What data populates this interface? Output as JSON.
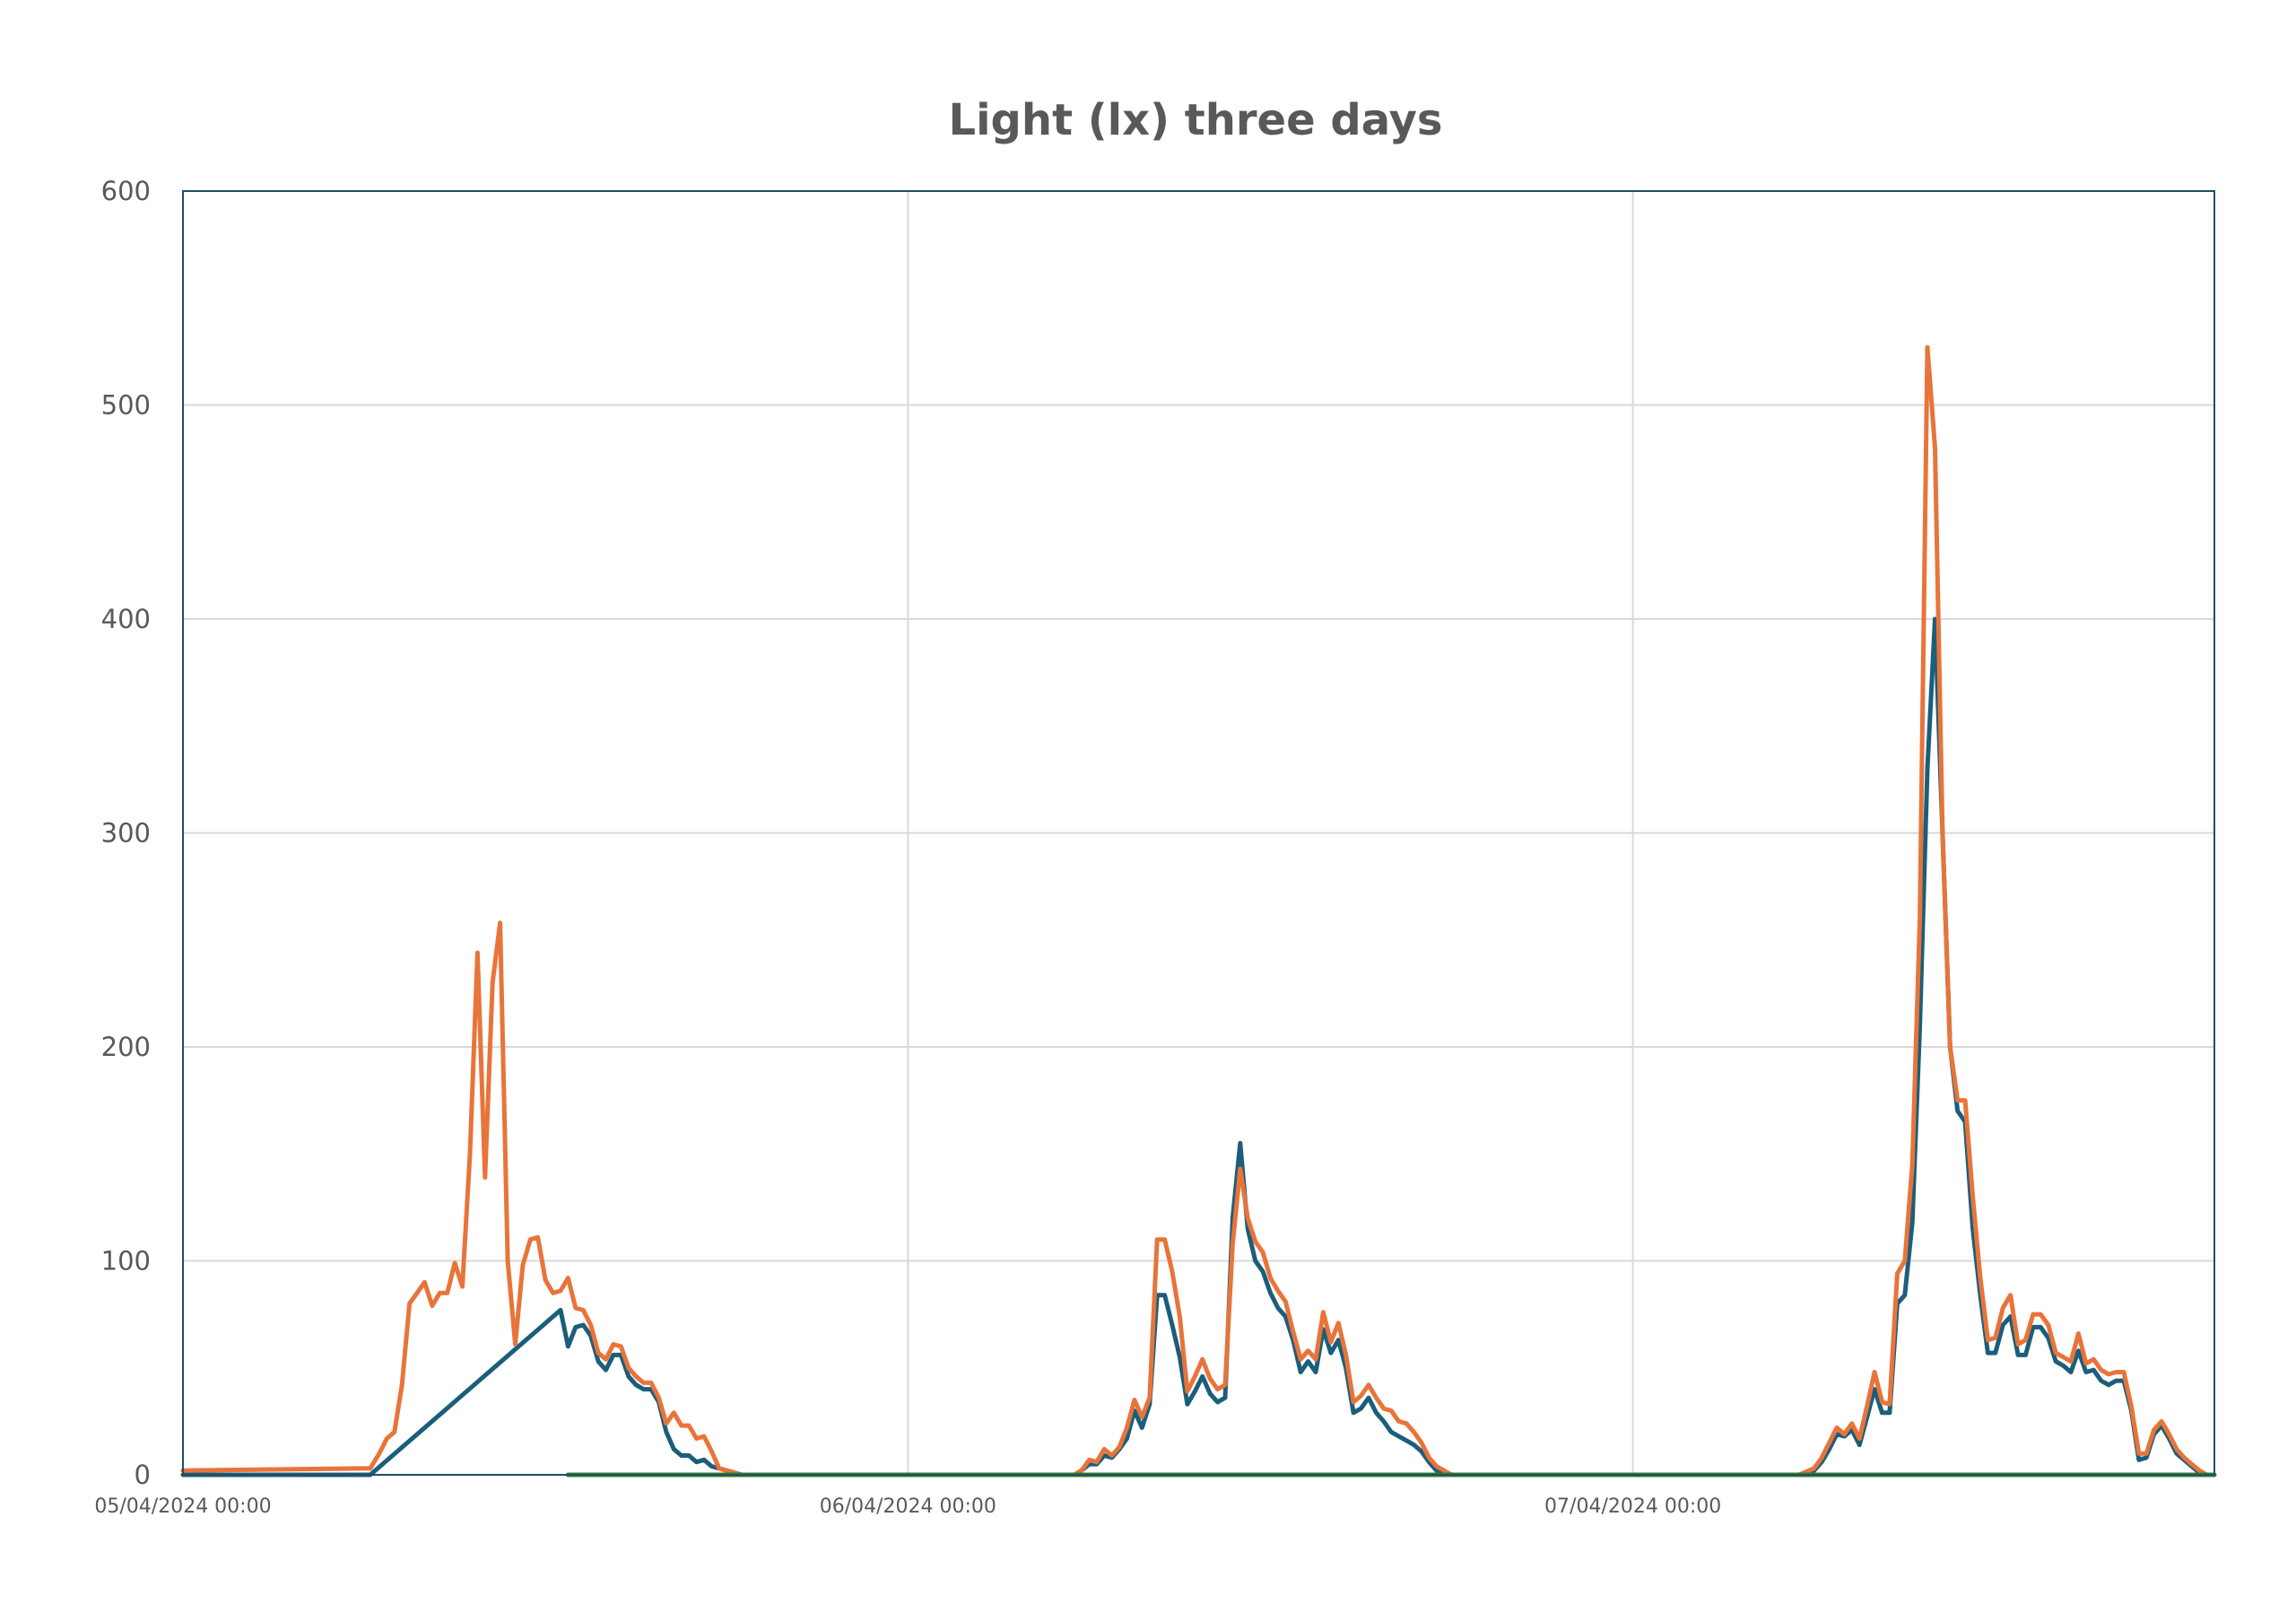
{
  "chart_data": {
    "type": "line",
    "title": "Light (lx) three days",
    "xlabel": "",
    "ylabel": "",
    "xlim": [
      0,
      67.25
    ],
    "ylim": [
      0,
      600
    ],
    "y_ticks": [
      0,
      100,
      200,
      300,
      400,
      500,
      600
    ],
    "x_ticks": [
      {
        "x": 0,
        "label": "05/04/2024 00:00"
      },
      {
        "x": 24,
        "label": "06/04/2024 00:00"
      },
      {
        "x": 48,
        "label": "07/04/2024 00:00"
      }
    ],
    "x_unit_note": "",
    "grid": true,
    "legend": "none",
    "colors": {
      "title": "#595959",
      "axis_text": "#595959",
      "grid": "#d9d9d9",
      "frame": "#1f4e63"
    },
    "series": [
      {
        "name": "",
        "color": "#1b5e7b",
        "points": [
          [
            0,
            0
          ],
          [
            6.2,
            0
          ],
          [
            12.5,
            77
          ],
          [
            12.75,
            60
          ],
          [
            13.0,
            69
          ],
          [
            13.25,
            70
          ],
          [
            13.5,
            65
          ],
          [
            13.75,
            53
          ],
          [
            14.0,
            49
          ],
          [
            14.25,
            56
          ],
          [
            14.5,
            56
          ],
          [
            14.75,
            46
          ],
          [
            15.0,
            42
          ],
          [
            15.25,
            40
          ],
          [
            15.5,
            40
          ],
          [
            15.75,
            34
          ],
          [
            16.0,
            20
          ],
          [
            16.25,
            12
          ],
          [
            16.5,
            9
          ],
          [
            16.75,
            9
          ],
          [
            17.0,
            6
          ],
          [
            17.25,
            7
          ],
          [
            17.5,
            4
          ],
          [
            18.0,
            2
          ],
          [
            18.5,
            0
          ],
          [
            29.5,
            0
          ],
          [
            29.75,
            2
          ],
          [
            30.0,
            5
          ],
          [
            30.25,
            5
          ],
          [
            30.5,
            9
          ],
          [
            30.75,
            8
          ],
          [
            31.0,
            12
          ],
          [
            31.25,
            17
          ],
          [
            31.5,
            30
          ],
          [
            31.75,
            22
          ],
          [
            32.0,
            33
          ],
          [
            32.25,
            84
          ],
          [
            32.5,
            84
          ],
          [
            32.75,
            70
          ],
          [
            33.0,
            55
          ],
          [
            33.25,
            33
          ],
          [
            33.5,
            39
          ],
          [
            33.75,
            46
          ],
          [
            34.0,
            38
          ],
          [
            34.25,
            34
          ],
          [
            34.5,
            36
          ],
          [
            34.75,
            120
          ],
          [
            35.0,
            155
          ],
          [
            35.25,
            115
          ],
          [
            35.5,
            100
          ],
          [
            35.75,
            95
          ],
          [
            36.0,
            85
          ],
          [
            36.25,
            78
          ],
          [
            36.5,
            74
          ],
          [
            36.75,
            63
          ],
          [
            37.0,
            48
          ],
          [
            37.25,
            53
          ],
          [
            37.5,
            48
          ],
          [
            37.75,
            68
          ],
          [
            38.0,
            57
          ],
          [
            38.25,
            63
          ],
          [
            38.5,
            50
          ],
          [
            38.75,
            29
          ],
          [
            39.0,
            31
          ],
          [
            39.25,
            36
          ],
          [
            39.5,
            29
          ],
          [
            39.75,
            25
          ],
          [
            40.0,
            20
          ],
          [
            40.25,
            18
          ],
          [
            40.5,
            16
          ],
          [
            40.75,
            14
          ],
          [
            41.0,
            11
          ],
          [
            41.25,
            6
          ],
          [
            41.5,
            2
          ],
          [
            42.0,
            0
          ],
          [
            53.5,
            0
          ],
          [
            54.0,
            2
          ],
          [
            54.25,
            6
          ],
          [
            54.5,
            12
          ],
          [
            54.75,
            19
          ],
          [
            55.0,
            18
          ],
          [
            55.25,
            21
          ],
          [
            55.5,
            14
          ],
          [
            55.75,
            27
          ],
          [
            56.0,
            40
          ],
          [
            56.25,
            29
          ],
          [
            56.5,
            29
          ],
          [
            56.75,
            80
          ],
          [
            57.0,
            84
          ],
          [
            57.25,
            118
          ],
          [
            57.5,
            210
          ],
          [
            57.75,
            330
          ],
          [
            58.0,
            400
          ],
          [
            58.25,
            300
          ],
          [
            58.5,
            200
          ],
          [
            58.75,
            170
          ],
          [
            59.0,
            165
          ],
          [
            59.25,
            115
          ],
          [
            59.5,
            84
          ],
          [
            59.75,
            57
          ],
          [
            60.0,
            57
          ],
          [
            60.25,
            70
          ],
          [
            60.5,
            74
          ],
          [
            60.75,
            56
          ],
          [
            61.0,
            56
          ],
          [
            61.25,
            69
          ],
          [
            61.5,
            69
          ],
          [
            61.75,
            64
          ],
          [
            62.0,
            53
          ],
          [
            62.25,
            51
          ],
          [
            62.5,
            48
          ],
          [
            62.75,
            58
          ],
          [
            63.0,
            48
          ],
          [
            63.25,
            49
          ],
          [
            63.5,
            44
          ],
          [
            63.75,
            42
          ],
          [
            64.0,
            44
          ],
          [
            64.25,
            44
          ],
          [
            64.5,
            30
          ],
          [
            64.75,
            7
          ],
          [
            65.0,
            8
          ],
          [
            65.25,
            19
          ],
          [
            65.5,
            23
          ],
          [
            65.75,
            17
          ],
          [
            66.0,
            10
          ],
          [
            66.25,
            7
          ],
          [
            66.5,
            4
          ],
          [
            66.75,
            1
          ],
          [
            67.0,
            0
          ]
        ]
      },
      {
        "name": "",
        "color": "#e8743a",
        "points": [
          [
            0,
            2
          ],
          [
            6.2,
            3
          ],
          [
            6.5,
            10
          ],
          [
            6.75,
            17
          ],
          [
            7.0,
            20
          ],
          [
            7.25,
            42
          ],
          [
            7.5,
            80
          ],
          [
            7.75,
            85
          ],
          [
            8.0,
            90
          ],
          [
            8.25,
            79
          ],
          [
            8.5,
            85
          ],
          [
            8.75,
            85
          ],
          [
            9.0,
            99
          ],
          [
            9.25,
            88
          ],
          [
            9.5,
            150
          ],
          [
            9.75,
            244
          ],
          [
            10.0,
            139
          ],
          [
            10.25,
            230
          ],
          [
            10.5,
            258
          ],
          [
            10.75,
            100
          ],
          [
            11.0,
            61
          ],
          [
            11.25,
            98
          ],
          [
            11.5,
            110
          ],
          [
            11.75,
            111
          ],
          [
            12.0,
            91
          ],
          [
            12.25,
            85
          ],
          [
            12.5,
            86
          ],
          [
            12.75,
            92
          ],
          [
            13.0,
            78
          ],
          [
            13.25,
            77
          ],
          [
            13.5,
            70
          ],
          [
            13.75,
            57
          ],
          [
            14.0,
            54
          ],
          [
            14.25,
            61
          ],
          [
            14.5,
            60
          ],
          [
            14.75,
            50
          ],
          [
            15.0,
            46
          ],
          [
            15.25,
            43
          ],
          [
            15.5,
            43
          ],
          [
            15.75,
            36
          ],
          [
            16.0,
            24
          ],
          [
            16.25,
            29
          ],
          [
            16.5,
            23
          ],
          [
            16.75,
            23
          ],
          [
            17.0,
            17
          ],
          [
            17.25,
            18
          ],
          [
            17.5,
            11
          ],
          [
            17.75,
            3
          ],
          [
            18.0,
            2
          ],
          [
            18.5,
            0
          ],
          [
            29.5,
            0
          ],
          [
            29.75,
            2
          ],
          [
            30.0,
            7
          ],
          [
            30.25,
            6
          ],
          [
            30.5,
            12
          ],
          [
            30.75,
            9
          ],
          [
            31.0,
            13
          ],
          [
            31.25,
            22
          ],
          [
            31.5,
            35
          ],
          [
            31.75,
            27
          ],
          [
            32.0,
            36
          ],
          [
            32.25,
            110
          ],
          [
            32.5,
            110
          ],
          [
            32.75,
            95
          ],
          [
            33.0,
            74
          ],
          [
            33.25,
            39
          ],
          [
            33.5,
            46
          ],
          [
            33.75,
            54
          ],
          [
            34.0,
            45
          ],
          [
            34.25,
            40
          ],
          [
            34.5,
            42
          ],
          [
            34.75,
            108
          ],
          [
            35.0,
            143
          ],
          [
            35.25,
            120
          ],
          [
            35.5,
            109
          ],
          [
            35.75,
            104
          ],
          [
            36.0,
            92
          ],
          [
            36.25,
            86
          ],
          [
            36.5,
            81
          ],
          [
            36.75,
            67
          ],
          [
            37.0,
            54
          ],
          [
            37.25,
            58
          ],
          [
            37.5,
            54
          ],
          [
            37.75,
            76
          ],
          [
            38.0,
            62
          ],
          [
            38.25,
            71
          ],
          [
            38.5,
            56
          ],
          [
            38.75,
            34
          ],
          [
            39.0,
            37
          ],
          [
            39.25,
            42
          ],
          [
            39.5,
            36
          ],
          [
            39.75,
            31
          ],
          [
            40.0,
            30
          ],
          [
            40.25,
            25
          ],
          [
            40.5,
            24
          ],
          [
            40.75,
            20
          ],
          [
            41.0,
            15
          ],
          [
            41.25,
            8
          ],
          [
            41.5,
            4
          ],
          [
            42.0,
            0
          ],
          [
            53.5,
            0
          ],
          [
            54.0,
            3
          ],
          [
            54.25,
            8
          ],
          [
            54.5,
            15
          ],
          [
            54.75,
            22
          ],
          [
            55.0,
            19
          ],
          [
            55.25,
            24
          ],
          [
            55.5,
            17
          ],
          [
            55.75,
            32
          ],
          [
            56.0,
            48
          ],
          [
            56.25,
            34
          ],
          [
            56.5,
            33
          ],
          [
            56.75,
            94
          ],
          [
            57.0,
            100
          ],
          [
            57.25,
            145
          ],
          [
            57.5,
            260
          ],
          [
            57.75,
            527
          ],
          [
            58.0,
            480
          ],
          [
            58.25,
            300
          ],
          [
            58.5,
            200
          ],
          [
            58.75,
            175
          ],
          [
            59.0,
            175
          ],
          [
            59.25,
            130
          ],
          [
            59.5,
            92
          ],
          [
            59.75,
            63
          ],
          [
            60.0,
            64
          ],
          [
            60.25,
            78
          ],
          [
            60.5,
            84
          ],
          [
            60.75,
            61
          ],
          [
            61.0,
            63
          ],
          [
            61.25,
            75
          ],
          [
            61.5,
            75
          ],
          [
            61.75,
            70
          ],
          [
            62.0,
            57
          ],
          [
            62.25,
            55
          ],
          [
            62.5,
            53
          ],
          [
            62.75,
            66
          ],
          [
            63.0,
            52
          ],
          [
            63.25,
            54
          ],
          [
            63.5,
            49
          ],
          [
            63.75,
            47
          ],
          [
            64.0,
            48
          ],
          [
            64.25,
            48
          ],
          [
            64.5,
            32
          ],
          [
            64.75,
            10
          ],
          [
            65.0,
            10
          ],
          [
            65.25,
            21
          ],
          [
            65.5,
            25
          ],
          [
            65.75,
            19
          ],
          [
            66.0,
            12
          ],
          [
            66.25,
            8
          ],
          [
            66.5,
            5
          ],
          [
            66.75,
            2
          ],
          [
            67.0,
            0
          ]
        ]
      },
      {
        "name": "",
        "color": "#2e7d32",
        "points": [
          [
            12.75,
            0
          ],
          [
            67.25,
            0
          ]
        ]
      }
    ]
  }
}
